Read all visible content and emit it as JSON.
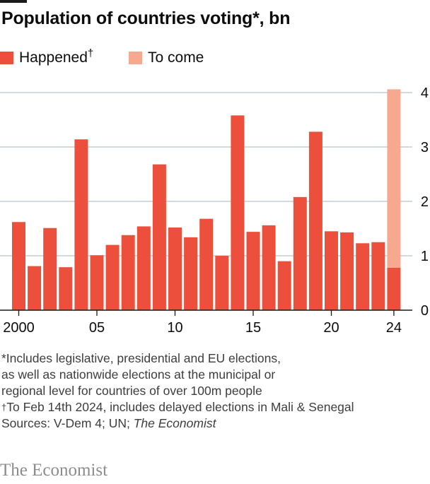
{
  "title": "Population of countries voting*, bn",
  "legend": {
    "happened_label": "Happened",
    "happened_mark": "†",
    "to_come_label": "To come"
  },
  "colors": {
    "happened": "#ec4f3c",
    "to_come": "#f7a990",
    "grid": "#b9c3cc",
    "axis": "#1a1a1a",
    "text": "#0c0c0c",
    "note": "#3d3d3d"
  },
  "chart_data": {
    "type": "bar",
    "stacked": true,
    "title": "Population of countries voting*, bn",
    "x": [
      2000,
      2001,
      2002,
      2003,
      2004,
      2005,
      2006,
      2007,
      2008,
      2009,
      2010,
      2011,
      2012,
      2013,
      2014,
      2015,
      2016,
      2017,
      2018,
      2019,
      2020,
      2021,
      2022,
      2023,
      2024
    ],
    "x_tick_labels": [
      {
        "x": 2000,
        "label": "2000"
      },
      {
        "x": 2005,
        "label": "05"
      },
      {
        "x": 2010,
        "label": "10"
      },
      {
        "x": 2015,
        "label": "15"
      },
      {
        "x": 2020,
        "label": "20"
      },
      {
        "x": 2024,
        "label": "24"
      }
    ],
    "series": [
      {
        "name": "Happened",
        "values": [
          1.62,
          0.81,
          1.51,
          0.79,
          3.14,
          1.01,
          1.2,
          1.38,
          1.54,
          2.68,
          1.52,
          1.34,
          1.68,
          1.0,
          3.58,
          1.44,
          1.56,
          0.9,
          2.08,
          3.28,
          1.45,
          1.43,
          1.23,
          1.25,
          0.78
        ]
      },
      {
        "name": "To come",
        "values": [
          0,
          0,
          0,
          0,
          0,
          0,
          0,
          0,
          0,
          0,
          0,
          0,
          0,
          0,
          0,
          0,
          0,
          0,
          0,
          0,
          0,
          0,
          0,
          0,
          3.28
        ]
      }
    ],
    "y_ticks": [
      0,
      1,
      2,
      3,
      4
    ],
    "ylim": [
      0,
      4
    ],
    "grid": true,
    "legend_position": "top-left"
  },
  "notes": {
    "line1": "*Includes legislative, presidential and EU elections,",
    "line2": "as well as nationwide elections at the municipal or",
    "line3": "regional level for countries of over 100m people",
    "line4_mark": "†",
    "line4": "To Feb 14th 2024, includes delayed elections in Mali & Senegal",
    "sources_prefix": "Sources: V-Dem 4; UN; ",
    "sources_italic": "The Economist"
  },
  "brand": "The Economist"
}
